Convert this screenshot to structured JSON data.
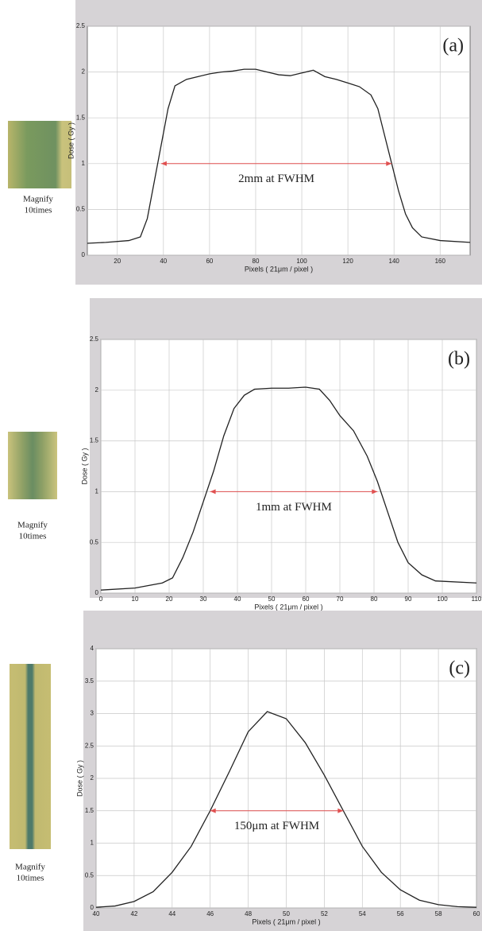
{
  "chart_data": [
    {
      "type": "line",
      "panel_label": "(a)",
      "xlabel": "Pixels ( 21μm / pixel )",
      "ylabel": "Dose ( Gy )",
      "image_caption": [
        "Magnify",
        "10times"
      ],
      "color": "#222222",
      "grid": true,
      "xlim": [
        7,
        173
      ],
      "ylim": [
        0,
        2.5
      ],
      "xticks": [
        20,
        40,
        60,
        80,
        100,
        120,
        140,
        160
      ],
      "yticks": [
        0,
        0.5,
        1,
        1.5,
        2,
        2.5
      ],
      "x": [
        7,
        15,
        25,
        30,
        33,
        36,
        39,
        42,
        45,
        50,
        55,
        60,
        65,
        70,
        75,
        80,
        85,
        90,
        95,
        100,
        105,
        110,
        115,
        120,
        125,
        130,
        133,
        136,
        139,
        142,
        145,
        148,
        152,
        160,
        173
      ],
      "values": [
        0.13,
        0.14,
        0.16,
        0.2,
        0.4,
        0.8,
        1.2,
        1.6,
        1.85,
        1.92,
        1.95,
        1.98,
        2.0,
        2.01,
        2.03,
        2.03,
        2.0,
        1.97,
        1.96,
        1.99,
        2.02,
        1.95,
        1.92,
        1.88,
        1.84,
        1.75,
        1.6,
        1.3,
        1.0,
        0.7,
        0.45,
        0.3,
        0.2,
        0.16,
        0.14
      ],
      "annotation": {
        "text": "2mm at FWHM",
        "x": [
          39,
          139
        ],
        "y": 1,
        "color": "#e05050"
      }
    },
    {
      "type": "line",
      "panel_label": "(b)",
      "xlabel": "Pixels ( 21μm / pixel )",
      "ylabel": "Dose ( Gy )",
      "image_caption": [
        "Magnify",
        "10times"
      ],
      "color": "#222222",
      "grid": true,
      "xlim": [
        0,
        110
      ],
      "ylim": [
        0,
        2.5
      ],
      "xticks": [
        0,
        10,
        20,
        30,
        40,
        50,
        60,
        70,
        80,
        90,
        100,
        110
      ],
      "yticks": [
        0,
        0.5,
        1,
        1.5,
        2,
        2.5
      ],
      "x": [
        0,
        10,
        18,
        21,
        24,
        27,
        30,
        33,
        36,
        39,
        42,
        45,
        50,
        55,
        60,
        64,
        67,
        70,
        74,
        78,
        81,
        84,
        87,
        90,
        94,
        98,
        110
      ],
      "values": [
        0.03,
        0.05,
        0.1,
        0.15,
        0.35,
        0.6,
        0.9,
        1.2,
        1.55,
        1.82,
        1.95,
        2.01,
        2.02,
        2.02,
        2.03,
        2.01,
        1.9,
        1.75,
        1.6,
        1.35,
        1.1,
        0.8,
        0.5,
        0.3,
        0.18,
        0.12,
        0.1
      ],
      "annotation": {
        "text": "1mm at FWHM",
        "x": [
          32,
          81
        ],
        "y": 1,
        "color": "#e05050"
      }
    },
    {
      "type": "line",
      "panel_label": "(c)",
      "xlabel": "Pixels ( 21μm / pixel )",
      "ylabel": "Dose ( Gy )",
      "image_caption": [
        "Magnify",
        "10times"
      ],
      "color": "#222222",
      "grid": true,
      "xlim": [
        40,
        60
      ],
      "ylim": [
        0,
        4
      ],
      "xticks": [
        40,
        42,
        44,
        46,
        48,
        50,
        52,
        54,
        56,
        58,
        60
      ],
      "yticks": [
        0,
        0.5,
        1,
        1.5,
        2,
        2.5,
        3,
        3.5,
        4
      ],
      "x": [
        40,
        41,
        42,
        43,
        44,
        45,
        46,
        47,
        48,
        49,
        50,
        51,
        52,
        53,
        54,
        55,
        56,
        57,
        58,
        59,
        60
      ],
      "values": [
        0.01,
        0.03,
        0.1,
        0.25,
        0.55,
        0.95,
        1.5,
        2.1,
        2.72,
        3.03,
        2.92,
        2.55,
        2.05,
        1.5,
        0.95,
        0.55,
        0.28,
        0.12,
        0.05,
        0.02,
        0.01
      ],
      "annotation": {
        "text": "150μm at FWHM",
        "x": [
          46,
          53
        ],
        "y": 1.5,
        "color": "#e05050"
      }
    }
  ]
}
